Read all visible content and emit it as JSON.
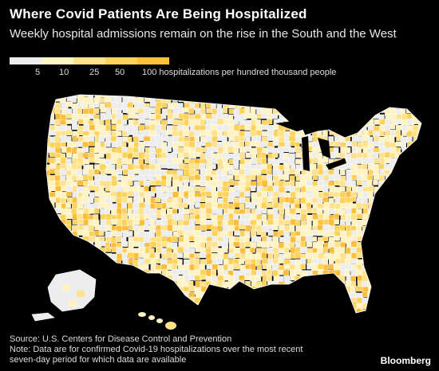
{
  "title": "Where Covid Patients Are Being Hospitalized",
  "subtitle": "Weekly hospital admissions remain on the rise in the South and the West",
  "legend": {
    "stops": [
      "5",
      "10",
      "25",
      "50",
      "100 hospitalizations per hundred thousand people"
    ],
    "colors": [
      "#ededed",
      "#fff3c4",
      "#ffe28a",
      "#ffd25a",
      "#fdbf3a"
    ]
  },
  "footer": {
    "source": "Source: U.S. Centers for Disease Control and Prevention",
    "note_line1": "Note: Data are for confirmed Covid-19 hospitalizations over the most recent",
    "note_line2": "seven-day period for which data are available"
  },
  "brand": "Bloomberg"
}
